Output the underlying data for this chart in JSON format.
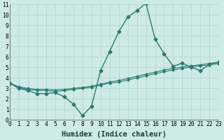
{
  "xlabel": "Humidex (Indice chaleur)",
  "ylabel": "",
  "background_color": "#ceeae6",
  "grid_color": "#aed4cf",
  "line_color": "#2a7a72",
  "x_values": [
    0,
    1,
    2,
    3,
    4,
    5,
    6,
    7,
    8,
    9,
    10,
    11,
    12,
    13,
    14,
    15,
    16,
    17,
    18,
    19,
    20,
    21,
    22,
    23
  ],
  "y_main": [
    3.5,
    3.0,
    2.8,
    2.5,
    2.5,
    2.6,
    2.2,
    1.5,
    0.4,
    1.3,
    4.7,
    6.5,
    8.4,
    9.8,
    10.4,
    11.1,
    7.7,
    6.3,
    5.1,
    5.4,
    5.0,
    4.7,
    5.3,
    5.5
  ],
  "y_trend1": [
    3.5,
    3.1,
    2.9,
    2.8,
    2.8,
    2.7,
    2.8,
    2.9,
    3.0,
    3.1,
    3.3,
    3.5,
    3.6,
    3.8,
    4.0,
    4.2,
    4.4,
    4.6,
    4.75,
    4.9,
    5.05,
    5.15,
    5.25,
    5.35
  ],
  "y_trend2": [
    3.5,
    3.15,
    3.0,
    2.9,
    2.9,
    2.85,
    2.9,
    3.0,
    3.1,
    3.2,
    3.4,
    3.6,
    3.75,
    3.95,
    4.15,
    4.35,
    4.55,
    4.75,
    4.9,
    5.05,
    5.15,
    5.25,
    5.38,
    5.5
  ],
  "xlim": [
    0,
    23
  ],
  "ylim": [
    0,
    11
  ],
  "yticks": [
    0,
    1,
    2,
    3,
    4,
    5,
    6,
    7,
    8,
    9,
    10,
    11
  ],
  "xticks": [
    0,
    1,
    2,
    3,
    4,
    5,
    6,
    7,
    8,
    9,
    10,
    11,
    12,
    13,
    14,
    15,
    16,
    17,
    18,
    19,
    20,
    21,
    22,
    23
  ],
  "marker": "D",
  "markersize": 2.5,
  "linewidth": 1.0,
  "xlabel_fontsize": 7.5,
  "tick_fontsize": 5.8
}
